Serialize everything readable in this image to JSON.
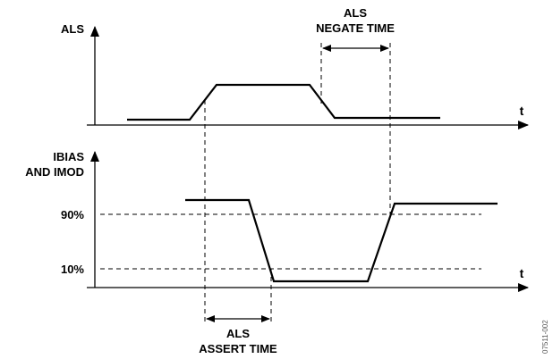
{
  "labels": {
    "als_axis": "ALS",
    "ibias_line1": "IBIAS",
    "ibias_line2": "AND IMOD",
    "t_top": "t",
    "t_bottom": "t",
    "level_90": "90%",
    "level_10": "10%",
    "negate_line1": "ALS",
    "negate_line2": "NEGATE TIME",
    "assert_line1": "ALS",
    "assert_line2": "ASSERT TIME",
    "figure_id": "07511-002"
  }
}
